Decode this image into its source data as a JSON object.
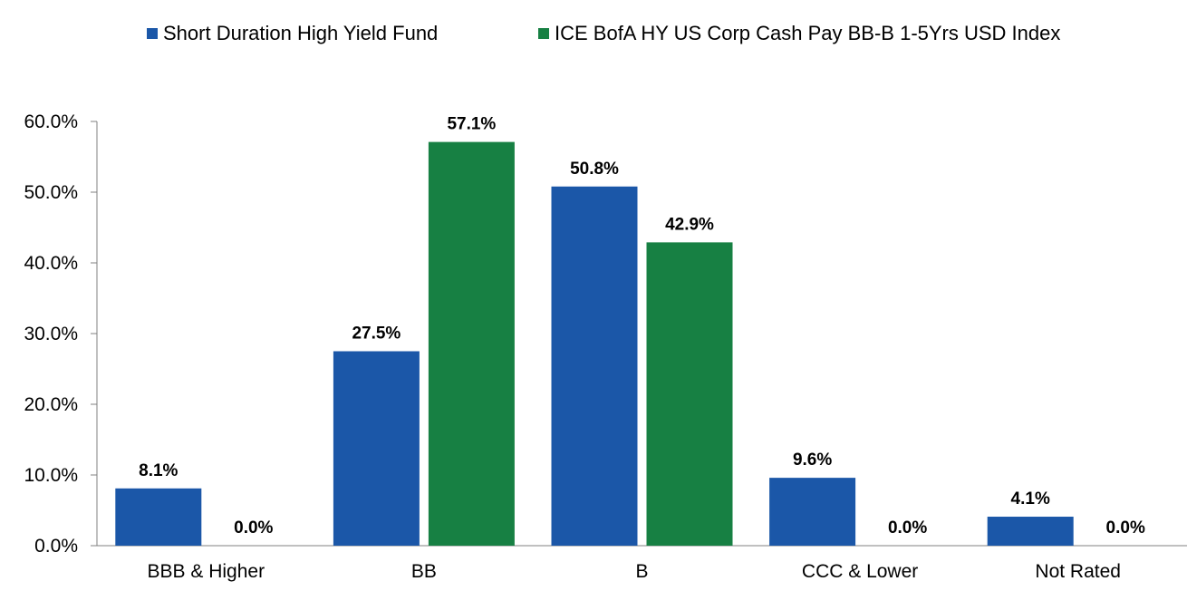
{
  "chart_data": {
    "type": "bar",
    "title": "",
    "xlabel": "",
    "ylabel": "",
    "categories": [
      "BBB & Higher",
      "BB",
      "B",
      "CCC & Lower",
      "Not Rated"
    ],
    "series": [
      {
        "name": "Short Duration High Yield Fund",
        "color": "#1B57A8",
        "values": [
          8.1,
          27.5,
          50.8,
          9.6,
          4.1
        ],
        "labels": [
          "8.1%",
          "27.5%",
          "50.8%",
          "9.6%",
          "4.1%"
        ]
      },
      {
        "name": "ICE BofA HY US Corp Cash Pay BB-B 1-5Yrs USD Index",
        "color": "#178043",
        "values": [
          0.0,
          57.1,
          42.9,
          0.0,
          0.0
        ],
        "labels": [
          "0.0%",
          "57.1%",
          "42.9%",
          "0.0%",
          "0.0%"
        ]
      }
    ],
    "ylim": [
      0,
      60
    ],
    "yticks": [
      0,
      10,
      20,
      30,
      40,
      50,
      60
    ],
    "ytick_labels": [
      "0.0%",
      "10.0%",
      "20.0%",
      "30.0%",
      "40.0%",
      "50.0%",
      "60.0%"
    ],
    "grid": false,
    "legend_position": "top-center"
  }
}
